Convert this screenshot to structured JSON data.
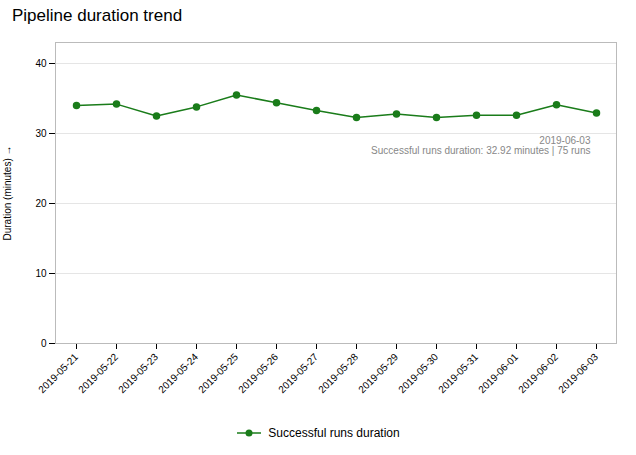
{
  "chart_data": {
    "type": "line",
    "title": "Pipeline duration trend",
    "ylabel": "Duration (minutes)",
    "categories": [
      "2019-05-21",
      "2019-05-22",
      "2019-05-23",
      "2019-05-24",
      "2019-05-25",
      "2019-05-26",
      "2019-05-27",
      "2019-05-28",
      "2019-05-29",
      "2019-05-30",
      "2019-05-31",
      "2019-06-01",
      "2019-06-02",
      "2019-06-03"
    ],
    "series": [
      {
        "name": "Successful runs duration",
        "color": "#1a7c1a",
        "marker": "circle",
        "values": [
          34.0,
          34.2,
          32.5,
          33.8,
          35.5,
          34.4,
          33.3,
          32.3,
          32.8,
          32.3,
          32.6,
          32.6,
          34.1,
          32.92
        ]
      }
    ],
    "ylim": [
      0,
      43
    ],
    "yticks": [
      0,
      10,
      20,
      30,
      40
    ],
    "grid": true,
    "legend": "bottom",
    "annotations": [
      "2019-06-03",
      "Successful runs duration: 32.92 minutes | 75 runs"
    ]
  }
}
